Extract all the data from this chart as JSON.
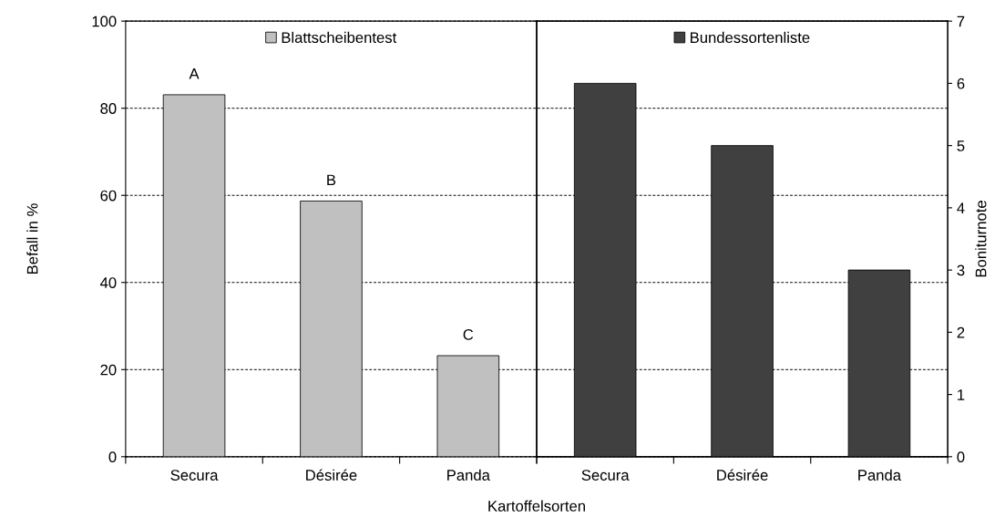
{
  "chart_data": [
    {
      "type": "bar",
      "xlabel": "Kartoffelsorten",
      "ylabel": "Befall in %",
      "categories": [
        "Secura",
        "Désirée",
        "Panda"
      ],
      "series": [
        {
          "name": "Blattscheibentest",
          "color": "#c0c0c0",
          "values": [
            83.1,
            58.7,
            23.2
          ]
        }
      ],
      "ylim": [
        0,
        100
      ],
      "yticks": [
        0,
        20,
        40,
        60,
        80,
        100
      ],
      "annotations": [
        "A",
        "B",
        "C"
      ],
      "grid": "y",
      "legend": "top"
    },
    {
      "type": "bar",
      "y2label": "Boniturnote",
      "categories": [
        "Secura",
        "Désirée",
        "Panda"
      ],
      "series": [
        {
          "name": "Bundessortenliste",
          "color": "#404040",
          "axis": "y2",
          "values": [
            6,
            5,
            3
          ]
        }
      ],
      "y2lim": [
        0,
        7
      ],
      "y2ticks": [
        0,
        1,
        2,
        3,
        4,
        5,
        6,
        7
      ],
      "legend": "top"
    }
  ]
}
